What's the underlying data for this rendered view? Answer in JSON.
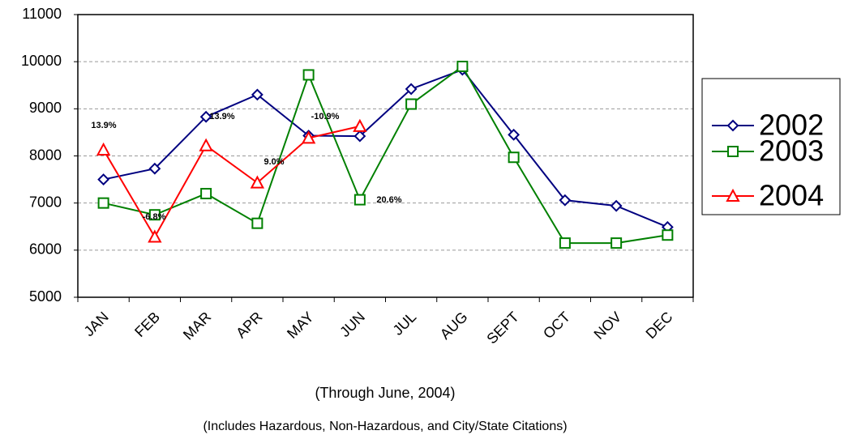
{
  "chart_data": {
    "type": "line",
    "subtitle": "(Through June, 2004)",
    "note": "(Includes Hazardous, Non-Hazardous, and City/State Citations)",
    "categories": [
      "JAN",
      "FEB",
      "MAR",
      "APR",
      "MAY",
      "JUN",
      "JUL",
      "AUG",
      "SEPT",
      "OCT",
      "NOV",
      "DEC"
    ],
    "series": [
      {
        "name": "2002",
        "color": "#000080",
        "marker": "diamond",
        "values": [
          7500,
          7730,
          8830,
          9300,
          8430,
          8420,
          9420,
          9830,
          8450,
          7060,
          6940,
          6490
        ]
      },
      {
        "name": "2003",
        "color": "#008000",
        "marker": "square",
        "values": [
          7000,
          6750,
          7200,
          6570,
          9720,
          7070,
          9100,
          9900,
          7970,
          6150,
          6150,
          6320
        ]
      },
      {
        "name": "2004",
        "color": "#ff0000",
        "marker": "triangle",
        "values": [
          8130,
          6280,
          8220,
          7430,
          8380,
          8630,
          null,
          null,
          null,
          null,
          null,
          null
        ]
      }
    ],
    "annotations": [
      "13.9%",
      "-6.8%",
      "13.9%",
      "9.0%",
      "-10.9%",
      "20.6%"
    ],
    "ylim": [
      5000,
      11000
    ],
    "yticks": [
      5000,
      6000,
      7000,
      8000,
      9000,
      10000,
      11000
    ],
    "grid": true,
    "legend": "right"
  }
}
